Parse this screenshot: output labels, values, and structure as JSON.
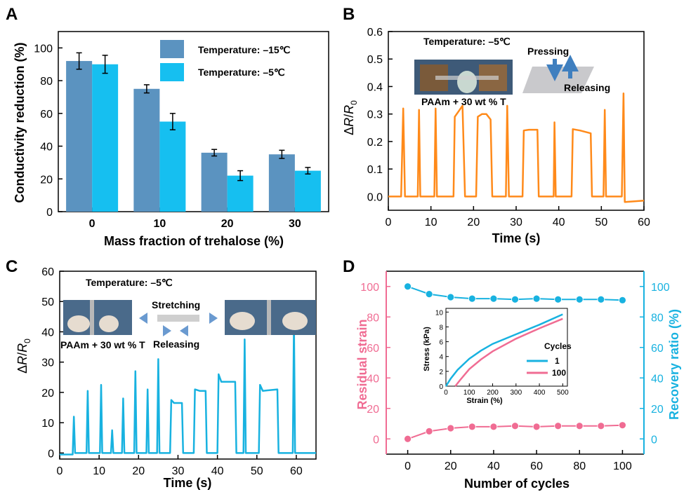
{
  "panels": {
    "a": {
      "letter": "A"
    },
    "b": {
      "letter": "B",
      "inset_title": "Temperature: –5℃",
      "photo_caption": "PAAm + 30 wt % T",
      "pressing": "Pressing",
      "releasing": "Releasing"
    },
    "c": {
      "letter": "C",
      "inset_title": "Temperature: –5℃",
      "photo_caption": "PAAm + 30 wt % T",
      "stretching": "Stretching",
      "releasing": "Releasing"
    },
    "d": {
      "letter": "D"
    }
  },
  "chart_data": [
    {
      "type": "bar",
      "panel": "A",
      "title": "",
      "xlabel": "Mass fraction of trehalose (%)",
      "ylabel": "Conductivity reduction (%)",
      "categories": [
        "0",
        "10",
        "20",
        "30"
      ],
      "ylim": [
        0,
        110
      ],
      "yticks": [
        0,
        20,
        40,
        60,
        80,
        100
      ],
      "legend_position": "top-right",
      "series": [
        {
          "name": "Temperature: –15℃",
          "values": [
            92,
            75,
            36,
            35
          ],
          "errors": [
            5,
            2.5,
            2,
            2.5
          ],
          "color": "#5b93c0"
        },
        {
          "name": "Temperature: –5℃",
          "values": [
            90,
            55,
            22,
            25
          ],
          "errors": [
            5.5,
            5,
            3,
            2
          ],
          "color": "#16bff0"
        }
      ]
    },
    {
      "type": "line",
      "panel": "B",
      "xlabel": "Time (s)",
      "ylabel": "ΔR/R0",
      "xlim": [
        0,
        60
      ],
      "ylim": [
        -0.05,
        0.6
      ],
      "xticks": [
        0,
        10,
        20,
        30,
        40,
        50,
        60
      ],
      "yticks": [
        "0.0",
        "0.1",
        "0.2",
        "0.3",
        "0.4",
        "0.5",
        "0.6"
      ],
      "color": "#ff8a1a",
      "series": [
        {
          "points": [
            [
              0,
              0.0
            ],
            [
              3.0,
              0.0
            ],
            [
              3.5,
              0.32
            ],
            [
              3.9,
              0.0
            ],
            [
              6.9,
              0.0
            ],
            [
              7.2,
              0.315
            ],
            [
              7.5,
              0.0
            ],
            [
              10.8,
              0.0
            ],
            [
              11.1,
              0.32
            ],
            [
              11.4,
              0.0
            ],
            [
              15.3,
              0.0
            ],
            [
              15.6,
              0.29
            ],
            [
              16.5,
              0.31
            ],
            [
              17.4,
              0.33
            ],
            [
              18.0,
              0.0
            ],
            [
              20.6,
              0.0
            ],
            [
              21.0,
              0.29
            ],
            [
              22.0,
              0.3
            ],
            [
              23.0,
              0.3
            ],
            [
              24.0,
              0.28
            ],
            [
              24.4,
              0.0
            ],
            [
              27.6,
              0.0
            ],
            [
              27.9,
              0.33
            ],
            [
              28.3,
              0.0
            ],
            [
              31.5,
              0.0
            ],
            [
              31.8,
              0.24
            ],
            [
              33.0,
              0.243
            ],
            [
              35.0,
              0.243
            ],
            [
              35.3,
              0.0
            ],
            [
              38.8,
              0.0
            ],
            [
              39.0,
              0.27
            ],
            [
              39.3,
              0.0
            ],
            [
              43.0,
              0.0
            ],
            [
              43.3,
              0.245
            ],
            [
              45.0,
              0.24
            ],
            [
              47.5,
              0.23
            ],
            [
              47.8,
              0.0
            ],
            [
              50.5,
              0.0
            ],
            [
              50.8,
              0.315
            ],
            [
              51.1,
              0.0
            ],
            [
              54.8,
              0.0
            ],
            [
              55.2,
              0.375
            ],
            [
              55.5,
              -0.02
            ],
            [
              60.0,
              -0.015
            ]
          ]
        }
      ]
    },
    {
      "type": "line",
      "panel": "C",
      "xlabel": "Time (s)",
      "ylabel": "ΔR/R0",
      "xlim": [
        0,
        65
      ],
      "ylim": [
        -2,
        60
      ],
      "xticks": [
        0,
        10,
        20,
        30,
        40,
        50,
        60
      ],
      "yticks": [
        0,
        10,
        20,
        30,
        40,
        50,
        60
      ],
      "color": "#18b2e0",
      "series": [
        {
          "points": [
            [
              0,
              -0.5
            ],
            [
              3.3,
              -0.5
            ],
            [
              3.6,
              12
            ],
            [
              3.9,
              0
            ],
            [
              6.8,
              0
            ],
            [
              7.1,
              20.5
            ],
            [
              7.4,
              0
            ],
            [
              10.2,
              0
            ],
            [
              10.5,
              22.5
            ],
            [
              10.8,
              0
            ],
            [
              13.0,
              0
            ],
            [
              13.3,
              7.5
            ],
            [
              13.6,
              0
            ],
            [
              15.8,
              0
            ],
            [
              16.1,
              18
            ],
            [
              16.4,
              0
            ],
            [
              18.9,
              0
            ],
            [
              19.2,
              27
            ],
            [
              19.5,
              0
            ],
            [
              22.0,
              0
            ],
            [
              22.3,
              21
            ],
            [
              22.6,
              0
            ],
            [
              24.7,
              0
            ],
            [
              25.0,
              31
            ],
            [
              25.3,
              0
            ],
            [
              28.0,
              0
            ],
            [
              28.3,
              17.5
            ],
            [
              29.0,
              16.5
            ],
            [
              31.0,
              16.5
            ],
            [
              31.3,
              0
            ],
            [
              34.0,
              0
            ],
            [
              34.3,
              21
            ],
            [
              35.5,
              20.5
            ],
            [
              37.0,
              20.5
            ],
            [
              37.3,
              0
            ],
            [
              40.0,
              0
            ],
            [
              40.3,
              26
            ],
            [
              41.0,
              23.5
            ],
            [
              44.5,
              23.5
            ],
            [
              44.8,
              0
            ],
            [
              46.6,
              0
            ],
            [
              46.9,
              37.5
            ],
            [
              47.2,
              0
            ],
            [
              50.5,
              0
            ],
            [
              50.8,
              22.5
            ],
            [
              51.5,
              20.5
            ],
            [
              55.2,
              21
            ],
            [
              55.5,
              0
            ],
            [
              59.1,
              0
            ],
            [
              59.4,
              44
            ],
            [
              59.7,
              0
            ],
            [
              65,
              0
            ]
          ]
        }
      ]
    },
    {
      "type": "line",
      "panel": "D",
      "xlabel": "Number of cycles",
      "ylabel": "Residual strain",
      "y2label": "Recovery ratio (%)",
      "xlim": [
        -10,
        110
      ],
      "ylim": [
        -10,
        110
      ],
      "y2lim": [
        -10,
        110
      ],
      "xticks": [
        0,
        20,
        40,
        60,
        80,
        100
      ],
      "yticks": [
        0,
        20,
        40,
        60,
        80,
        100
      ],
      "series": [
        {
          "axis": "left",
          "color": "#f06c93",
          "x": [
            0,
            10,
            20,
            30,
            40,
            50,
            60,
            70,
            80,
            90,
            100
          ],
          "values": [
            0,
            5,
            7,
            8,
            8,
            8.5,
            8,
            8.5,
            8.5,
            8.5,
            9
          ]
        },
        {
          "axis": "right",
          "color": "#18b2e0",
          "x": [
            0,
            10,
            20,
            30,
            40,
            50,
            60,
            70,
            80,
            90,
            100
          ],
          "values": [
            100,
            95,
            93,
            92,
            92,
            91.5,
            92,
            91.5,
            91.5,
            91.5,
            91
          ]
        }
      ],
      "inset": {
        "type": "line",
        "xlabel": "Strain (%)",
        "ylabel": "Stress (kPa)",
        "xlim": [
          0,
          520
        ],
        "ylim": [
          0,
          10.5
        ],
        "xticks": [
          0,
          100,
          200,
          300,
          400,
          500
        ],
        "yticks": [
          0,
          2,
          4,
          6,
          8,
          10
        ],
        "legend_title": "Cycles",
        "legend_position": "right",
        "series": [
          {
            "name": "1",
            "color": "#18b2e0",
            "points": [
              [
                0,
                0
              ],
              [
                20,
                1.0
              ],
              [
                50,
                2.2
              ],
              [
                100,
                3.7
              ],
              [
                150,
                4.8
              ],
              [
                200,
                5.7
              ],
              [
                300,
                7.0
              ],
              [
                400,
                8.3
              ],
              [
                500,
                9.7
              ]
            ]
          },
          {
            "name": "100",
            "color": "#f06c93",
            "points": [
              [
                40,
                0
              ],
              [
                60,
                0.8
              ],
              [
                100,
                2.3
              ],
              [
                150,
                3.6
              ],
              [
                200,
                4.7
              ],
              [
                300,
                6.4
              ],
              [
                400,
                7.8
              ],
              [
                500,
                9.1
              ]
            ]
          }
        ]
      }
    }
  ]
}
